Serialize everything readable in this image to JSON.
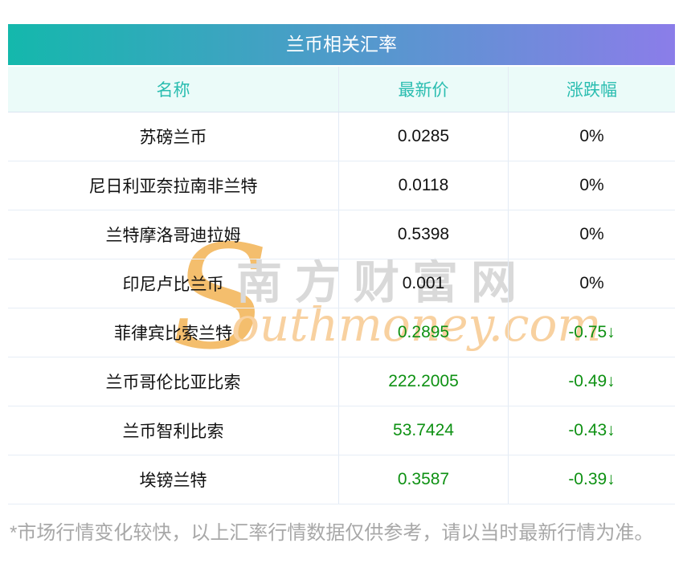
{
  "table": {
    "title": "兰币相关汇率",
    "columns": [
      "名称",
      "最新价",
      "涨跌幅"
    ],
    "rows": [
      {
        "name": "苏磅兰币",
        "price": "0.0285",
        "change": "0%",
        "trend": "flat"
      },
      {
        "name": "尼日利亚奈拉南非兰特",
        "price": "0.0118",
        "change": "0%",
        "trend": "flat"
      },
      {
        "name": "兰特摩洛哥迪拉姆",
        "price": "0.5398",
        "change": "0%",
        "trend": "flat"
      },
      {
        "name": "印尼卢比兰币",
        "price": "0.001",
        "change": "0%",
        "trend": "flat"
      },
      {
        "name": "菲律宾比索兰特",
        "price": "0.2895",
        "change": "-0.75↓",
        "trend": "down"
      },
      {
        "name": "兰币哥伦比亚比索",
        "price": "222.2005",
        "change": "-0.49↓",
        "trend": "down"
      },
      {
        "name": "兰币智利比索",
        "price": "53.7424",
        "change": "-0.43↓",
        "trend": "down"
      },
      {
        "name": "埃镑兰特",
        "price": "0.3587",
        "change": "-0.39↓",
        "trend": "down"
      }
    ]
  },
  "watermark": {
    "s_glyph": "S",
    "site_name_cn": "南方财富网",
    "site_domain": "outhmoney.com"
  },
  "footer": {
    "disclaimer": "*市场行情变化较快，以上汇率行情数据仅供参考，请以当时最新行情为准。"
  },
  "colors": {
    "title_gradient_start": "#14b8ac",
    "title_gradient_end": "#8b7de9",
    "header_bg": "#ebfbf9",
    "header_text": "#2abdb0",
    "down_green": "#0e9113",
    "row_text": "#111111",
    "watermark_gray": "#d9d9d9",
    "watermark_gold": "#f4be6d",
    "disclaimer_gray": "#a8a8a8"
  }
}
